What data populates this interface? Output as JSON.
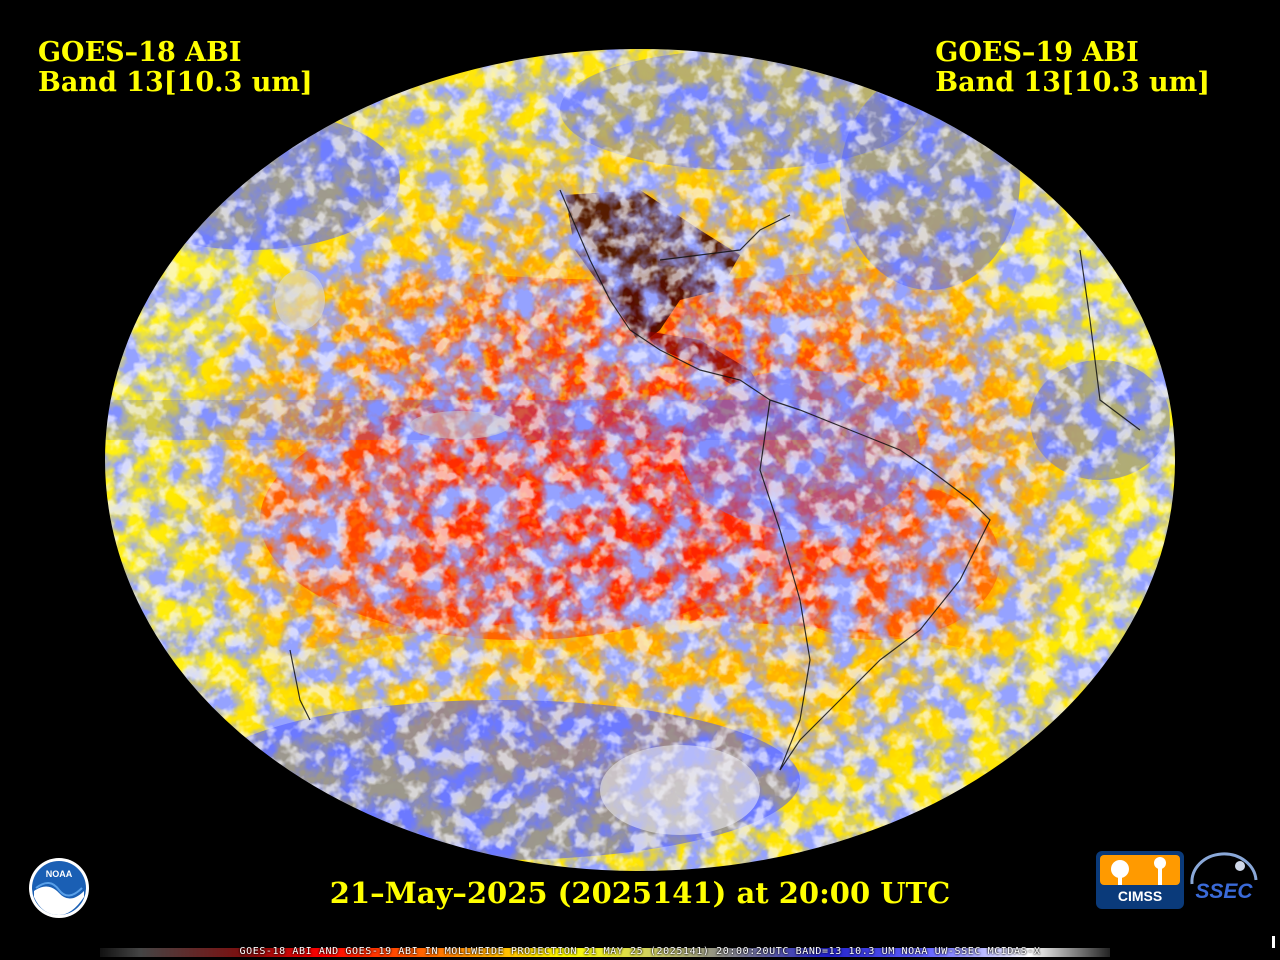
{
  "header": {
    "left_line1": "GOES–18 ABI",
    "left_line2": "Band 13[10.3 um]",
    "right_line1": "GOES–19 ABI",
    "right_line2": "Band 13[10.3 um]"
  },
  "timestamp": "21–May–2025 (2025141) at 20:00 UTC",
  "footer": "GOES-18 ABI AND GOES-19 ABI IN MOLLWEIDE PROJECTION 21 MAY 25 (2025141) 20:00:20UTC BAND=13 10.3 UM NOAA UW-SSEC MCIDAS-X",
  "logos": {
    "noaa": "NOAA",
    "cimss": "CIMSS",
    "ssec": "SSEC"
  },
  "colors": {
    "label": "#ffff00",
    "background": "#000000",
    "warm_red": "#ff2a00",
    "orange": "#ff8c00",
    "yellow": "#ffee00",
    "cloud_blue": "#4d5cff",
    "cloud_white": "#e8e8f0",
    "land_dark": "#3a0000"
  },
  "map": {
    "projection": "Mollweide"
  }
}
